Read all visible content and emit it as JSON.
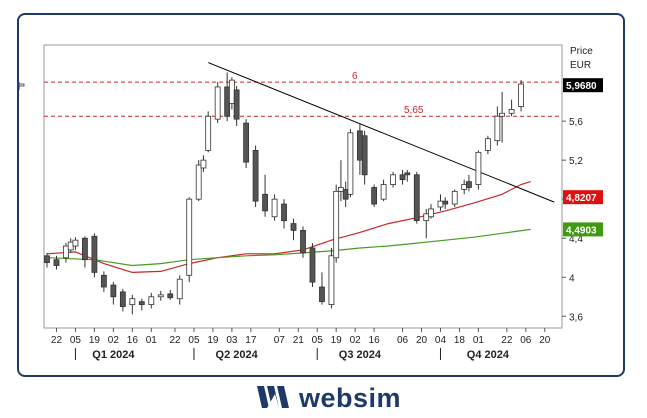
{
  "brand": {
    "name": "websim",
    "color": "#1f3a68"
  },
  "chart_data": {
    "type": "candlestick",
    "axis_title": [
      "Price",
      "EUR"
    ],
    "ylim": [
      3.48,
      6.38
    ],
    "y_ticks": [
      3.6,
      4,
      4.4,
      4.8,
      5.2,
      5.6
    ],
    "y_tick_labels": [
      "3,6",
      "4",
      "4,4",
      "4,8",
      "5,2",
      "5,6"
    ],
    "x_tick_labels": [
      {
        "label": "22",
        "bar": 2
      },
      {
        "label": "05",
        "bar": 6
      },
      {
        "label": "19",
        "bar": 10
      },
      {
        "label": "02",
        "bar": 14
      },
      {
        "label": "16",
        "bar": 18
      },
      {
        "label": "01",
        "bar": 22
      },
      {
        "label": "22",
        "bar": 27
      },
      {
        "label": "05",
        "bar": 31
      },
      {
        "label": "19",
        "bar": 35
      },
      {
        "label": "03",
        "bar": 39
      },
      {
        "label": "17",
        "bar": 43
      },
      {
        "label": "07",
        "bar": 49
      },
      {
        "label": "21",
        "bar": 53
      },
      {
        "label": "05",
        "bar": 57
      },
      {
        "label": "19",
        "bar": 61
      },
      {
        "label": "02",
        "bar": 65
      },
      {
        "label": "16",
        "bar": 69
      },
      {
        "label": "06",
        "bar": 75
      },
      {
        "label": "20",
        "bar": 79
      },
      {
        "label": "04",
        "bar": 83
      },
      {
        "label": "18",
        "bar": 87
      },
      {
        "label": "01",
        "bar": 91
      },
      {
        "label": "22",
        "bar": 97
      },
      {
        "label": "06",
        "bar": 101
      },
      {
        "label": "20",
        "bar": 105
      }
    ],
    "quarters": [
      {
        "label": "Q1 2024",
        "bar": 14,
        "sep_bar": 6
      },
      {
        "label": "Q2 2024",
        "bar": 40,
        "sep_bar": 31
      },
      {
        "label": "Q3 2024",
        "bar": 66,
        "sep_bar": 57
      },
      {
        "label": "Q4 2024",
        "bar": 93,
        "sep_bar": 83
      }
    ],
    "candles": [
      [
        4.22,
        4.15,
        4.25,
        4.1
      ],
      [
        4.18,
        4.12,
        4.22,
        4.08
      ],
      [
        4.2,
        4.32,
        4.35,
        4.15
      ],
      [
        4.28,
        4.36,
        4.4,
        4.25
      ],
      [
        4.32,
        4.38,
        4.41,
        4.28
      ],
      [
        4.4,
        4.18,
        4.42,
        4.1
      ],
      [
        4.42,
        4.05,
        4.45,
        4.0
      ],
      [
        4.02,
        3.9,
        4.06,
        3.85
      ],
      [
        3.92,
        3.8,
        3.95,
        3.72
      ],
      [
        3.85,
        3.7,
        3.88,
        3.65
      ],
      [
        3.72,
        3.78,
        3.82,
        3.62
      ],
      [
        3.75,
        3.72,
        3.78,
        3.66
      ],
      [
        3.72,
        3.8,
        3.84,
        3.68
      ],
      [
        3.8,
        3.82,
        3.86,
        3.76
      ],
      [
        3.83,
        3.79,
        3.87,
        3.77
      ],
      [
        3.78,
        3.98,
        4.02,
        3.72
      ],
      [
        4.02,
        4.8,
        4.82,
        3.95
      ],
      [
        4.8,
        5.15,
        5.2,
        4.78
      ],
      [
        5.12,
        5.2,
        5.25,
        5.08
      ],
      [
        5.3,
        5.65,
        5.7,
        5.28
      ],
      [
        5.62,
        5.95,
        6.0,
        5.58
      ],
      [
        5.95,
        5.65,
        6.1,
        5.6
      ],
      [
        5.78,
        6.02,
        6.05,
        5.72
      ],
      [
        5.92,
        5.62,
        5.96,
        5.55
      ],
      [
        5.58,
        5.18,
        5.62,
        5.12
      ],
      [
        5.3,
        4.78,
        5.35,
        4.72
      ],
      [
        4.85,
        4.68,
        5.05,
        4.62
      ],
      [
        4.62,
        4.8,
        4.85,
        4.58
      ],
      [
        4.75,
        4.58,
        4.8,
        4.5
      ],
      [
        4.55,
        4.48,
        4.6,
        4.38
      ],
      [
        4.48,
        4.25,
        4.52,
        4.2
      ],
      [
        4.3,
        3.95,
        4.35,
        3.9
      ],
      [
        3.9,
        3.75,
        4.05,
        3.72
      ],
      [
        3.72,
        4.22,
        4.3,
        3.68
      ],
      [
        4.2,
        4.88,
        4.95,
        4.15
      ],
      [
        4.88,
        4.92,
        5.2,
        4.78
      ],
      [
        4.9,
        4.8,
        4.98,
        4.72
      ],
      [
        4.85,
        5.48,
        5.52,
        4.82
      ],
      [
        5.5,
        5.2,
        5.58,
        5.05
      ],
      [
        5.45,
        5.05,
        5.5,
        4.95
      ],
      [
        4.92,
        4.75,
        4.95,
        4.72
      ],
      [
        4.8,
        4.95,
        5.0,
        4.78
      ],
      [
        4.95,
        5.05,
        5.08,
        4.92
      ],
      [
        5.05,
        5.0,
        5.1,
        4.95
      ],
      [
        5.07,
        5.05,
        5.1,
        4.98
      ],
      [
        5.05,
        4.58,
        5.08,
        4.55
      ],
      [
        4.58,
        4.65,
        4.7,
        4.4
      ],
      [
        4.62,
        4.7,
        4.75,
        4.6
      ],
      [
        4.72,
        4.78,
        4.85,
        4.68
      ],
      [
        4.78,
        4.75,
        4.82,
        4.7
      ],
      [
        4.75,
        4.88,
        4.9,
        4.72
      ],
      [
        4.9,
        4.95,
        5.0,
        4.85
      ],
      [
        4.98,
        4.92,
        5.05,
        4.88
      ],
      [
        4.95,
        5.28,
        5.3,
        4.9
      ],
      [
        5.3,
        5.42,
        5.45,
        5.26
      ],
      [
        5.4,
        5.65,
        5.75,
        5.35
      ],
      [
        5.65,
        5.68,
        5.9,
        5.38
      ],
      [
        5.68,
        5.72,
        5.82,
        5.65
      ],
      [
        5.75,
        5.98,
        6.02,
        5.7
      ],
      [
        5.96,
        5.98,
        6.0,
        5.92
      ]
    ],
    "candle_bars": [
      0,
      2,
      4,
      5,
      6,
      8,
      10,
      12,
      14,
      16,
      18,
      20,
      22,
      24,
      26,
      28,
      30,
      32,
      33,
      34,
      36,
      38,
      39,
      40,
      42,
      44,
      46,
      48,
      50,
      52,
      54,
      56,
      58,
      60,
      61,
      62,
      63,
      64,
      66,
      67,
      69,
      71,
      73,
      75,
      76,
      78,
      80,
      81,
      83,
      84,
      86,
      88,
      89,
      91,
      93,
      95,
      96,
      98,
      100
    ],
    "horizontal_levels": [
      {
        "value": 6,
        "label": "6",
        "color": "#c62828"
      },
      {
        "value": 5.65,
        "label": "5,65",
        "color": "#c62828"
      }
    ],
    "trendline": {
      "start": {
        "bar": 34,
        "value": 6.2
      },
      "end": {
        "bar": 107,
        "value": 4.77
      },
      "color": "#000000"
    },
    "series": [
      {
        "color": "#c62828",
        "points": [
          [
            0,
            4.24
          ],
          [
            6,
            4.26
          ],
          [
            12,
            4.14
          ],
          [
            18,
            4.05
          ],
          [
            24,
            4.06
          ],
          [
            30,
            4.14
          ],
          [
            36,
            4.2
          ],
          [
            42,
            4.24
          ],
          [
            48,
            4.24
          ],
          [
            54,
            4.28
          ],
          [
            60,
            4.38
          ],
          [
            66,
            4.46
          ],
          [
            72,
            4.55
          ],
          [
            78,
            4.61
          ],
          [
            84,
            4.68
          ],
          [
            90,
            4.76
          ],
          [
            96,
            4.85
          ],
          [
            100,
            4.95
          ],
          [
            102,
            4.98
          ]
        ]
      },
      {
        "color": "#4a9a22",
        "points": [
          [
            0,
            4.2
          ],
          [
            10,
            4.18
          ],
          [
            18,
            4.12
          ],
          [
            24,
            4.14
          ],
          [
            30,
            4.18
          ],
          [
            36,
            4.2
          ],
          [
            42,
            4.22
          ],
          [
            48,
            4.23
          ],
          [
            54,
            4.25
          ],
          [
            60,
            4.27
          ],
          [
            66,
            4.3
          ],
          [
            72,
            4.32
          ],
          [
            78,
            4.35
          ],
          [
            84,
            4.38
          ],
          [
            90,
            4.41
          ],
          [
            96,
            4.45
          ],
          [
            102,
            4.49
          ]
        ]
      }
    ],
    "price_labels": [
      {
        "value": 5.968,
        "text": "5,9680",
        "bg": "#000000",
        "fg": "#ffffff"
      },
      {
        "value": 4.8207,
        "text": "4,8207",
        "bg": "#e01010",
        "fg": "#ffffff"
      },
      {
        "value": 4.4903,
        "text": "4,4903",
        "bg": "#3f9a12",
        "fg": "#ffffff"
      }
    ]
  }
}
